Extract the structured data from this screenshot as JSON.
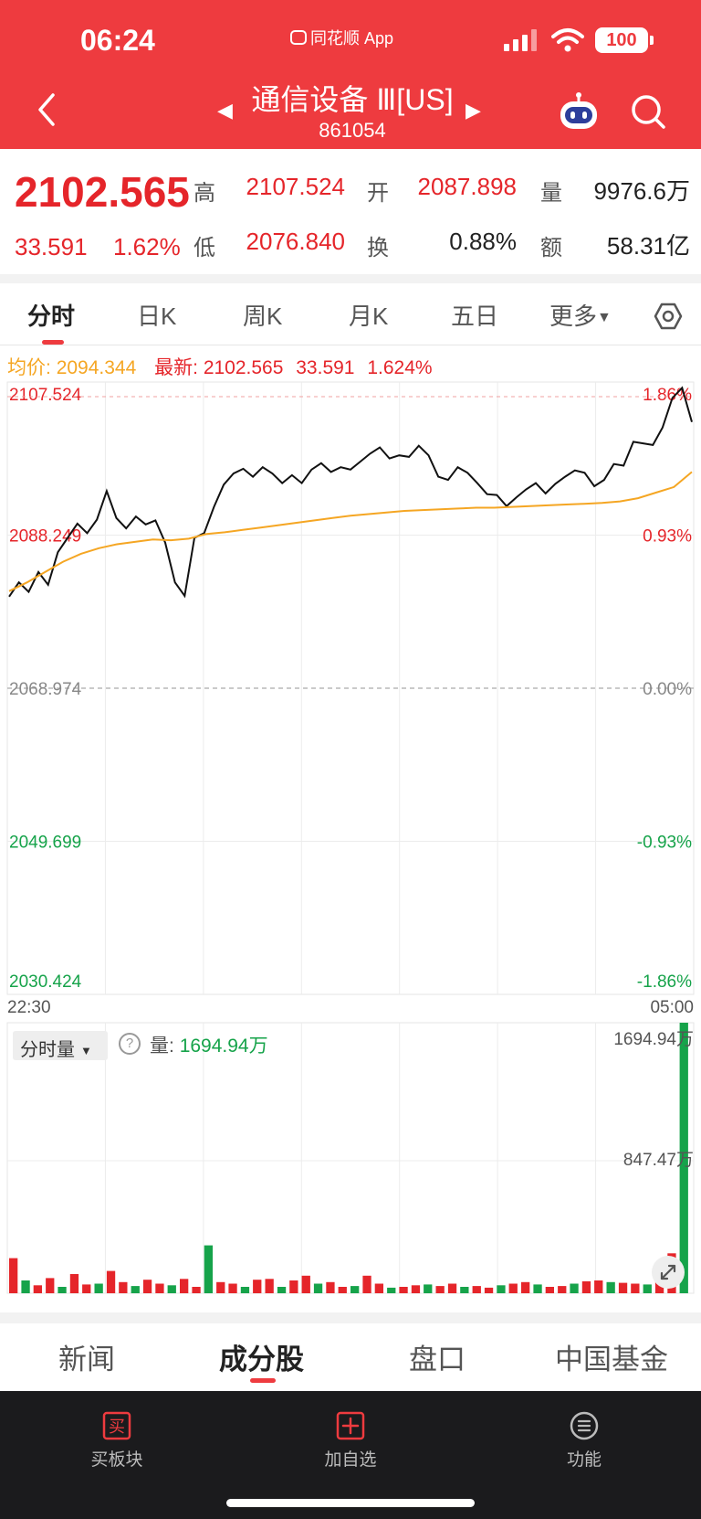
{
  "status_bar": {
    "time": "06:24",
    "app_name": "同花顺 App",
    "battery": "100"
  },
  "header": {
    "title": "通信设备 Ⅲ[US]",
    "code": "861054",
    "prev_arrow": "◀",
    "next_arrow": "▶"
  },
  "quote": {
    "price": "2102.565",
    "change": "33.591",
    "change_pct": "1.62%",
    "high_label": "高",
    "high": "2107.524",
    "low_label": "低",
    "low": "2076.840",
    "open_label": "开",
    "open": "2087.898",
    "turnover_label": "换",
    "turnover": "0.88%",
    "volume_label": "量",
    "volume": "9976.6万",
    "amount_label": "额",
    "amount": "58.31亿"
  },
  "tabs": [
    {
      "label": "分时"
    },
    {
      "label": "日K"
    },
    {
      "label": "周K"
    },
    {
      "label": "月K"
    },
    {
      "label": "五日"
    },
    {
      "label": "更多"
    }
  ],
  "legend": {
    "avg_label": "均价:",
    "avg_value": "2094.344",
    "last_label": "最新:",
    "last_value": "2102.565",
    "last_change": "33.591",
    "last_pct": "1.624%"
  },
  "chart_data": [
    {
      "type": "line",
      "title": "",
      "ylim": [
        2030.424,
        2107.524
      ],
      "ylabels_left": [
        "2107.524",
        "2088.249",
        "2068.974",
        "2049.699",
        "2030.424"
      ],
      "ylabels_right": [
        "1.86%",
        "0.93%",
        "0.00%",
        "-0.93%",
        "-1.86%"
      ],
      "xlabels": [
        "22:30",
        "05:00"
      ],
      "grid": true,
      "series": [
        {
          "values": [
            2080.5,
            2082.3,
            2081.1,
            2083.6,
            2082.0,
            2086.1,
            2087.9,
            2089.7,
            2088.5,
            2090.2,
            2093.8,
            2090.4,
            2089.1,
            2090.6,
            2089.6,
            2090.1,
            2087.3,
            2082.3,
            2080.6,
            2087.9,
            2088.5,
            2091.8,
            2094.6,
            2096.0,
            2096.6,
            2095.6,
            2096.8,
            2096.0,
            2094.8,
            2095.8,
            2094.8,
            2096.5,
            2097.3,
            2096.2,
            2096.8,
            2096.5,
            2097.5,
            2098.5,
            2099.3,
            2097.9,
            2098.3,
            2098.1,
            2099.5,
            2098.3,
            2095.6,
            2095.2,
            2096.8,
            2096.1,
            2094.8,
            2093.4,
            2093.3,
            2091.9,
            2093.0,
            2094.0,
            2094.8,
            2093.5,
            2094.7,
            2095.6,
            2096.4,
            2096.1,
            2094.4,
            2095.2,
            2097.2,
            2097.0,
            2100.0,
            2099.8,
            2099.6,
            2101.8,
            2105.5,
            2106.8,
            2102.5
          ]
        },
        {
          "values": [
            2081.2,
            2082.3,
            2083.6,
            2084.9,
            2085.9,
            2086.6,
            2087.1,
            2087.4,
            2087.7,
            2087.6,
            2087.8,
            2088.4,
            2088.6,
            2088.9,
            2089.2,
            2089.5,
            2089.8,
            2090.1,
            2090.4,
            2090.7,
            2090.9,
            2091.1,
            2091.3,
            2091.4,
            2091.5,
            2091.6,
            2091.7,
            2091.7,
            2091.8,
            2091.9,
            2092.0,
            2092.1,
            2092.2,
            2092.3,
            2092.5,
            2092.9,
            2093.6,
            2094.3,
            2096.2
          ]
        }
      ]
    },
    {
      "type": "bar",
      "title": "",
      "ylim": [
        0,
        1694.94
      ],
      "ylabels": [
        "1694.94万",
        "847.47万"
      ],
      "values": [
        220,
        80,
        50,
        95,
        40,
        120,
        55,
        60,
        140,
        70,
        45,
        85,
        60,
        50,
        90,
        40,
        300,
        70,
        60,
        40,
        85,
        90,
        40,
        80,
        110,
        60,
        70,
        40,
        45,
        110,
        60,
        35,
        40,
        50,
        55,
        45,
        60,
        40,
        45,
        35,
        50,
        60,
        70,
        55,
        40,
        45,
        60,
        75,
        80,
        70,
        65,
        60,
        55,
        150,
        250,
        1694.94
      ]
    }
  ],
  "volume_panel": {
    "select_label": "分时量",
    "help": "?",
    "volume_label": "量:",
    "volume_value": "1694.94万"
  },
  "sections": [
    {
      "label": "新闻"
    },
    {
      "label": "成分股"
    },
    {
      "label": "盘口"
    },
    {
      "label": "中国基金"
    }
  ],
  "toolbar": [
    {
      "label": "买板块",
      "icon_text": "买"
    },
    {
      "label": "加自选"
    },
    {
      "label": "功能"
    }
  ]
}
